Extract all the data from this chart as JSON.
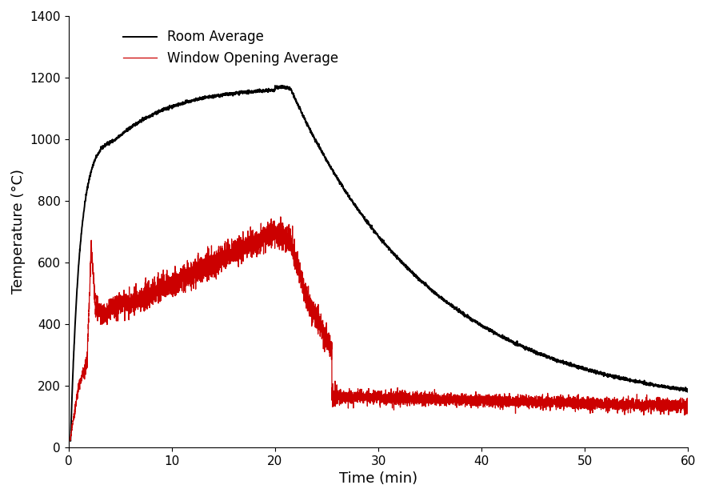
{
  "title": "",
  "xlabel": "Time (min)",
  "ylabel": "Temperature (°C)",
  "xlim": [
    0,
    60
  ],
  "ylim": [
    0,
    1400
  ],
  "yticks": [
    0,
    200,
    400,
    600,
    800,
    1000,
    1200,
    1400
  ],
  "xticks": [
    0,
    10,
    20,
    30,
    40,
    50,
    60
  ],
  "room_color": "#000000",
  "window_color": "#cc0000",
  "room_label": "Room Average",
  "window_label": "Window Opening Average",
  "linewidth_room": 1.4,
  "linewidth_window": 0.9,
  "legend_fontsize": 12,
  "axis_fontsize": 13,
  "tick_fontsize": 11,
  "background_color": "#ffffff"
}
